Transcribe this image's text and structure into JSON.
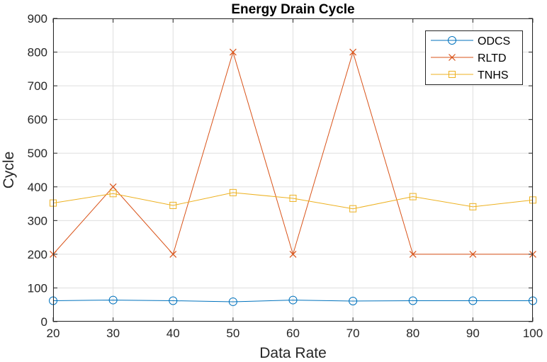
{
  "chart_data": {
    "type": "line",
    "title": "Energy Drain Cycle",
    "xlabel": "Data Rate",
    "ylabel": "Cycle",
    "x": [
      20,
      30,
      40,
      50,
      60,
      70,
      80,
      90,
      100
    ],
    "xlim": [
      20,
      100
    ],
    "ylim": [
      0,
      900
    ],
    "xticks": [
      20,
      30,
      40,
      50,
      60,
      70,
      80,
      90,
      100
    ],
    "yticks": [
      0,
      100,
      200,
      300,
      400,
      500,
      600,
      700,
      800,
      900
    ],
    "grid": true,
    "legend_position": "top-right",
    "series": [
      {
        "name": "ODCS",
        "color": "#0072BD",
        "marker": "circle",
        "values": [
          62,
          64,
          62,
          59,
          64,
          61,
          62,
          62,
          62
        ]
      },
      {
        "name": "RLTD",
        "color": "#D95319",
        "marker": "x",
        "values": [
          200,
          400,
          200,
          800,
          200,
          800,
          200,
          200,
          200
        ]
      },
      {
        "name": "TNHS",
        "color": "#EDB120",
        "marker": "square",
        "values": [
          352,
          380,
          345,
          383,
          366,
          335,
          371,
          341,
          361
        ]
      }
    ]
  }
}
